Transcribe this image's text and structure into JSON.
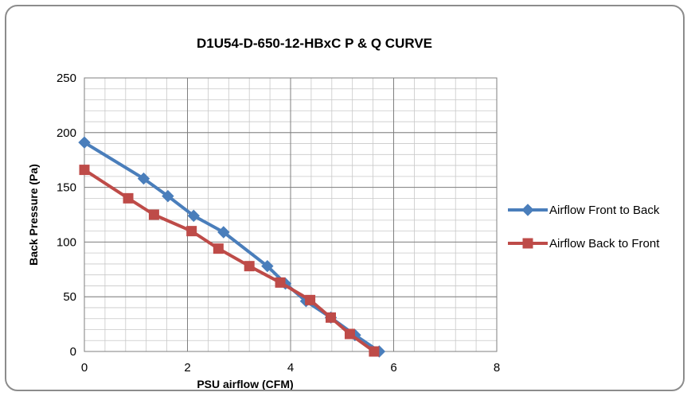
{
  "chart_data": {
    "type": "line",
    "title": "D1U54-D-650-12-HBxC   P & Q  CURVE",
    "xlabel": "PSU airflow  (CFM)",
    "ylabel": "Back Pressure  (Pa)",
    "xlim": [
      0,
      8
    ],
    "ylim": [
      0,
      250
    ],
    "x_ticks": [
      "0",
      "2",
      "4",
      "6",
      "8"
    ],
    "y_ticks": [
      "0",
      "50",
      "100",
      "150",
      "200",
      "250"
    ],
    "grid": true,
    "legend_position": "right",
    "series": [
      {
        "name": "Airflow Front to Back",
        "color": "#4a7ebb",
        "marker": "diamond",
        "x": [
          0,
          1.15,
          1.62,
          2.12,
          2.7,
          3.55,
          3.9,
          4.3,
          4.78,
          5.25,
          5.72
        ],
        "y": [
          191,
          158,
          142,
          124,
          109,
          78,
          62,
          46,
          31,
          15,
          0
        ]
      },
      {
        "name": "Airflow Back to Front",
        "color": "#be4b48",
        "marker": "square",
        "x": [
          0,
          0.85,
          1.35,
          2.08,
          2.6,
          3.2,
          3.8,
          4.38,
          4.78,
          5.15,
          5.62
        ],
        "y": [
          166,
          140,
          125,
          110,
          94,
          78,
          63,
          47,
          31,
          16,
          0
        ]
      }
    ]
  }
}
